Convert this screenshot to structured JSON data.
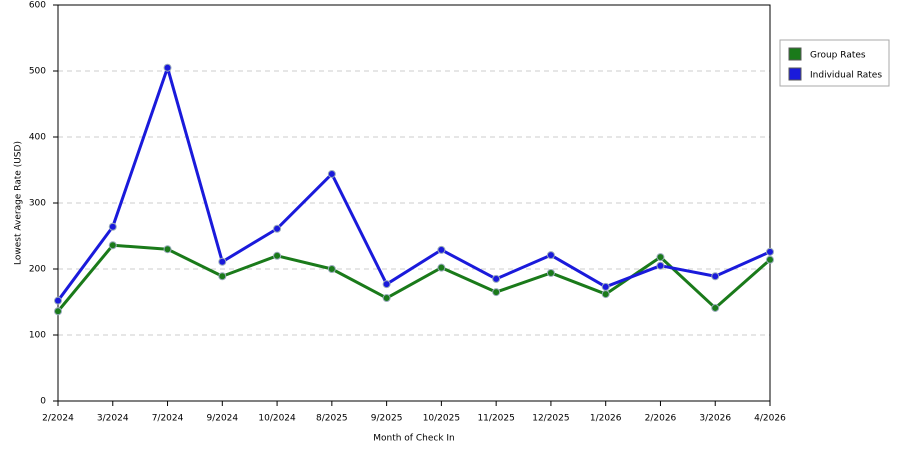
{
  "chart_data": {
    "type": "line",
    "x_label": "Month of Check In",
    "y_label": "Lowest Average Rate (USD)",
    "categories": [
      "2/2024",
      "3/2024",
      "7/2024",
      "9/2024",
      "10/2024",
      "8/2025",
      "9/2025",
      "10/2025",
      "11/2025",
      "12/2025",
      "1/2026",
      "2/2026",
      "3/2026",
      "4/2026"
    ],
    "series": [
      {
        "name": "Group Rates",
        "color": "#1a7a1a",
        "values": [
          136,
          236,
          230,
          189,
          220,
          200,
          156,
          202,
          165,
          194,
          162,
          218,
          141,
          214
        ]
      },
      {
        "name": "Individual Rates",
        "color": "#1a1adb",
        "values": [
          152,
          264,
          505,
          211,
          261,
          344,
          177,
          229,
          185,
          221,
          173,
          205,
          189,
          226
        ]
      }
    ],
    "ylim": [
      0,
      600
    ],
    "yticks": [
      0,
      100,
      200,
      300,
      400,
      500,
      600
    ],
    "grid": true,
    "legend": "top-right"
  }
}
